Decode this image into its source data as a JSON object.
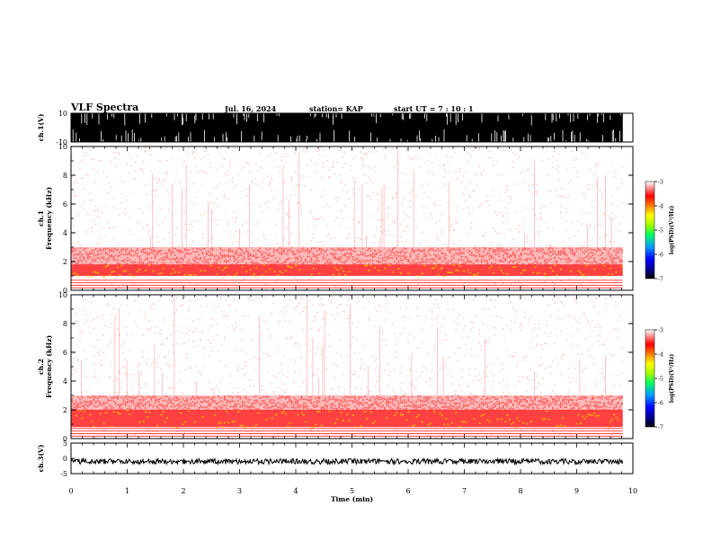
{
  "header": {
    "title": "VLF Spectra",
    "date": "Jul. 16, 2024",
    "station": "station= KAP",
    "start": "start  UT =   7 : 10 : 1"
  },
  "chart_data": [
    {
      "type": "line",
      "name": "channel-1-waveform",
      "ylabel": "ch.1(V)",
      "ylim": [
        -10,
        10
      ],
      "yticks": [
        "10",
        "-10"
      ],
      "xlim": [
        0,
        10
      ],
      "x_extent": 9.82,
      "description": "dense saturated waveform filling -10..10 V"
    },
    {
      "type": "heatmap",
      "name": "channel-1-spectrogram",
      "ylabel": "ch.1  Frequency (kHz)",
      "ylim": [
        0,
        10
      ],
      "yticks": [
        "0",
        "2",
        "4",
        "6",
        "8",
        "10"
      ],
      "xlim": [
        0,
        10
      ],
      "x_extent": 9.82,
      "bands_khz": {
        "intense": [
          1.0,
          1.8
        ],
        "moderate": [
          1.8,
          3.0
        ],
        "base_lines": [
          0.2,
          0.9
        ]
      },
      "colorbar": {
        "label": "log(PSD)(V²/Hz)",
        "range": [
          -7,
          -3
        ],
        "ticks": [
          "-3",
          "-4",
          "-5",
          "-6",
          "-7"
        ]
      }
    },
    {
      "type": "heatmap",
      "name": "channel-2-spectrogram",
      "ylabel": "ch.2  Frequency (kHz)",
      "ylim": [
        0,
        10
      ],
      "yticks": [
        "0",
        "2",
        "4",
        "6",
        "8",
        "10"
      ],
      "xlim": [
        0,
        10
      ],
      "x_extent": 9.82,
      "bands_khz": {
        "intense": [
          0.8,
          2.0
        ],
        "moderate": [
          2.0,
          3.0
        ],
        "base_lines": [
          0.2,
          0.8
        ]
      },
      "colorbar": {
        "label": "log(PSD)(V²/Hz)",
        "range": [
          -7,
          -3
        ],
        "ticks": [
          "-3",
          "-4",
          "-5",
          "-6",
          "-7"
        ]
      }
    },
    {
      "type": "line",
      "name": "channel-3-waveform",
      "ylabel": "ch.3(V)",
      "ylim": [
        -5,
        5
      ],
      "yticks": [
        "5",
        "0",
        "-5"
      ],
      "xlim": [
        0,
        10
      ],
      "x_extent": 9.82,
      "level": -1.0,
      "xlabel": "Time  (min)",
      "xticks": [
        "0",
        "1",
        "2",
        "3",
        "4",
        "5",
        "6",
        "7",
        "8",
        "9",
        "10"
      ]
    }
  ]
}
